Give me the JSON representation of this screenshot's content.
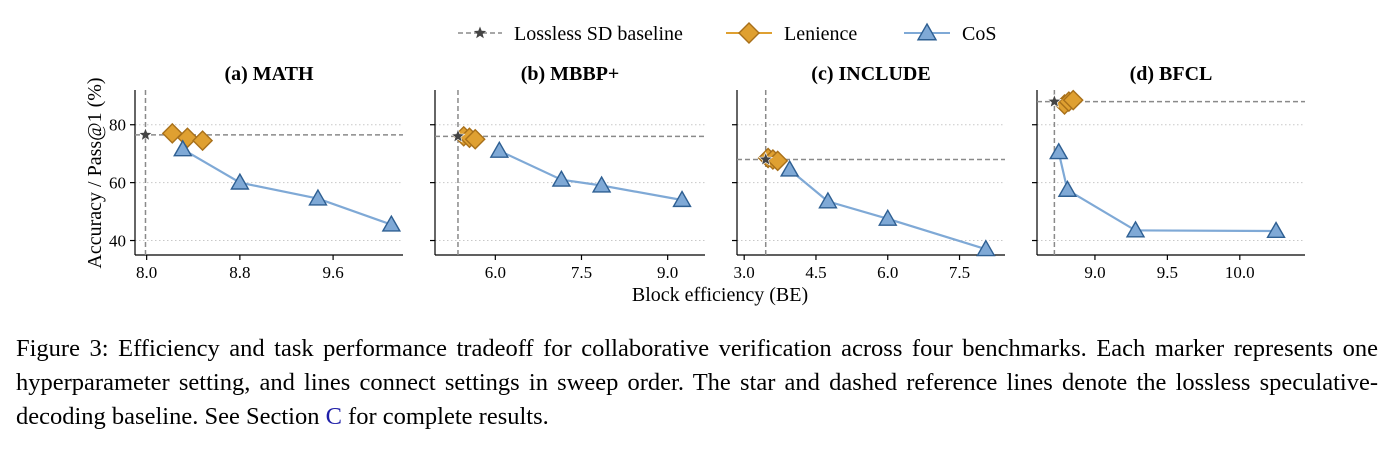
{
  "legend": {
    "items": [
      {
        "label": "Lossless SD baseline",
        "color": "#8a8a8a",
        "marker": "star-dashed-line"
      },
      {
        "label": "Lenience",
        "color": "#dfa031",
        "marker": "diamond"
      },
      {
        "label": "CoS",
        "color": "#7fa9d6",
        "marker": "triangle"
      }
    ]
  },
  "shared_axes": {
    "xlabel": "Block efficiency (BE)",
    "ylabel": "Accuracy / Pass@1 (%)"
  },
  "chart_data": [
    {
      "type": "line",
      "title": "(a) MATH",
      "xlim": [
        7.9,
        10.2
      ],
      "xticks": [
        8.0,
        8.8,
        9.6
      ],
      "xtick_labels": [
        "8.0",
        "8.8",
        "9.6"
      ],
      "ylim": [
        35,
        92
      ],
      "yticks": [
        40,
        60,
        80
      ],
      "ytick_labels": [
        "40",
        "60",
        "80"
      ],
      "grid": "horizontal dotted",
      "baseline": {
        "x": 7.99,
        "y": 76.5
      },
      "series": [
        {
          "name": "Lenience",
          "points": [
            [
              8.22,
              77
            ],
            [
              8.35,
              75.5
            ],
            [
              8.48,
              74.5
            ]
          ]
        },
        {
          "name": "CoS",
          "points": [
            [
              8.31,
              71.5
            ],
            [
              8.8,
              60
            ],
            [
              9.47,
              54.5
            ],
            [
              10.1,
              45.5
            ]
          ]
        }
      ]
    },
    {
      "type": "line",
      "title": "(b) MBBP+",
      "xlim": [
        4.95,
        9.65
      ],
      "xticks": [
        6.0,
        7.5,
        9.0
      ],
      "xtick_labels": [
        "6.0",
        "7.5",
        "9.0"
      ],
      "ylim": [
        35,
        92
      ],
      "yticks": [
        40,
        60,
        80
      ],
      "ytick_labels": [
        "40",
        "60",
        "80"
      ],
      "grid": "horizontal dotted",
      "baseline": {
        "x": 5.35,
        "y": 76
      },
      "series": [
        {
          "name": "Lenience",
          "points": [
            [
              5.45,
              76
            ],
            [
              5.55,
              75.5
            ],
            [
              5.65,
              75
            ]
          ]
        },
        {
          "name": "CoS",
          "points": [
            [
              6.07,
              71
            ],
            [
              7.15,
              61
            ],
            [
              7.85,
              59
            ],
            [
              9.25,
              54
            ]
          ]
        }
      ]
    },
    {
      "type": "line",
      "title": "(c) INCLUDE",
      "xlim": [
        2.85,
        8.45
      ],
      "xticks": [
        3.0,
        4.5,
        6.0,
        7.5
      ],
      "xtick_labels": [
        "3.0",
        "4.5",
        "6.0",
        "7.5"
      ],
      "ylim": [
        35,
        92
      ],
      "yticks": [
        40,
        60,
        80
      ],
      "ytick_labels": [
        "40",
        "60",
        "80"
      ],
      "grid": "horizontal dotted",
      "baseline": {
        "x": 3.45,
        "y": 68
      },
      "series": [
        {
          "name": "Lenience",
          "points": [
            [
              3.5,
              68.5
            ],
            [
              3.6,
              68
            ],
            [
              3.7,
              67.5
            ]
          ]
        },
        {
          "name": "CoS",
          "points": [
            [
              3.95,
              64.5
            ],
            [
              4.75,
              53.5
            ],
            [
              6.0,
              47.5
            ],
            [
              8.05,
              37
            ]
          ]
        }
      ]
    },
    {
      "type": "line",
      "title": "(d) BFCL",
      "xlim": [
        8.6,
        10.45
      ],
      "xticks": [
        9.0,
        9.5,
        10.0
      ],
      "xtick_labels": [
        "9.0",
        "9.5",
        "10.0"
      ],
      "ylim": [
        35,
        92
      ],
      "yticks": [
        40,
        60,
        80
      ],
      "ytick_labels": [
        "40",
        "60",
        "80"
      ],
      "grid": "horizontal dotted",
      "baseline": {
        "x": 8.72,
        "y": 88
      },
      "series": [
        {
          "name": "Lenience",
          "points": [
            [
              8.79,
              87
            ],
            [
              8.82,
              88
            ],
            [
              8.85,
              88.5
            ]
          ]
        },
        {
          "name": "CoS",
          "points": [
            [
              8.75,
              70.5
            ],
            [
              8.81,
              57.5
            ],
            [
              9.28,
              43.5
            ],
            [
              10.25,
              43.3
            ]
          ]
        }
      ]
    }
  ],
  "caption": {
    "text_before_ref": "Figure 3: Efficiency and task performance tradeoff for collaborative verification across four benchmarks. Each marker represents one hyperparameter setting, and lines connect settings in sweep order. The star and dashed reference lines denote the lossless speculative-decoding baseline. See Section ",
    "ref": "C",
    "text_after_ref": " for complete results."
  }
}
